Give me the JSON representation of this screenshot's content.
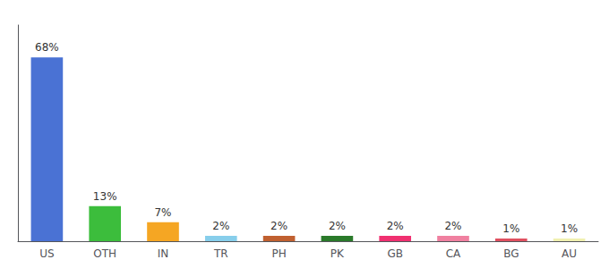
{
  "chart_data": {
    "type": "bar",
    "categories": [
      "US",
      "OTH",
      "IN",
      "TR",
      "PH",
      "PK",
      "GB",
      "CA",
      "BG",
      "AU"
    ],
    "values": [
      68,
      13,
      7,
      2,
      2,
      2,
      2,
      2,
      1,
      1
    ],
    "value_labels": [
      "68%",
      "13%",
      "7%",
      "2%",
      "2%",
      "2%",
      "2%",
      "2%",
      "1%",
      "1%"
    ],
    "colors": [
      "#4a72d4",
      "#3cbd3c",
      "#f5a623",
      "#87ceeb",
      "#c06030",
      "#2a7a2a",
      "#f03070",
      "#f080a0",
      "#e05060",
      "#f0f0b0"
    ],
    "ylim": [
      0,
      80
    ],
    "grid": false,
    "data_labels": true,
    "tick_labels": "x"
  }
}
